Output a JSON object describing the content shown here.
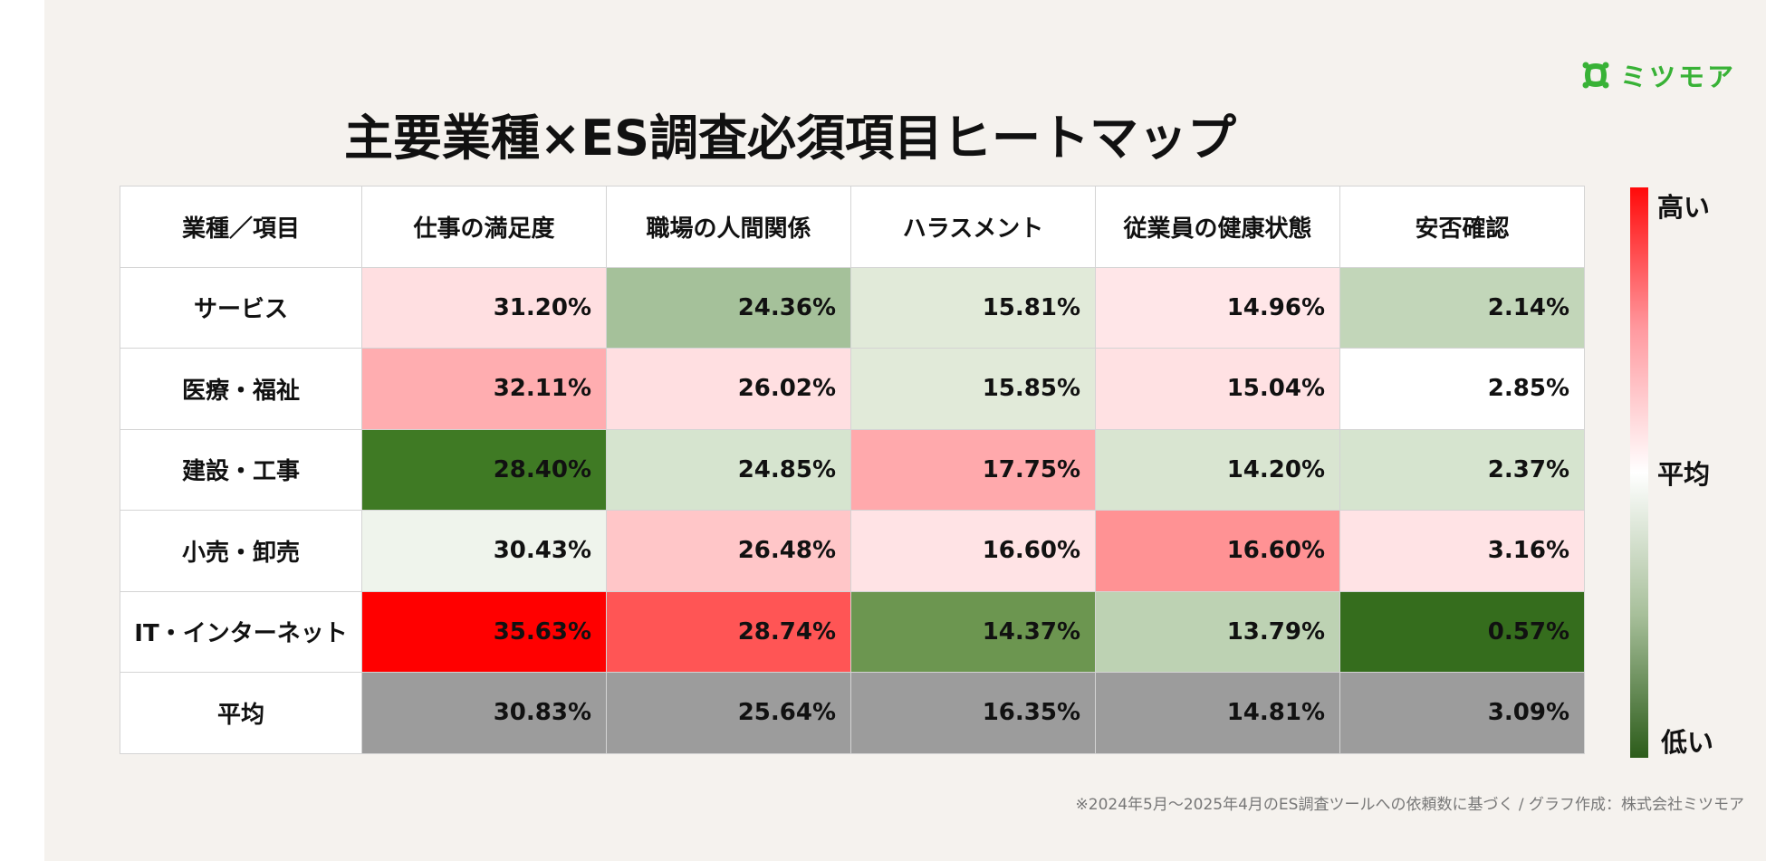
{
  "title": "主要業種×ES調査必須項目ヒートマップ",
  "logo": {
    "text": "ミツモア",
    "color": "#38b236"
  },
  "footnote": "※2024年5月〜2025年4月のES調査ツールへの依頼数に基づく / グラフ作成：株式会社ミツモア",
  "legend": {
    "high": "高い",
    "mid": "平均",
    "low": "低い"
  },
  "chart_data": {
    "type": "heatmap",
    "title": "主要業種×ES調査必須項目ヒートマップ",
    "corner_label": "業種／項目",
    "columns": [
      "仕事の満足度",
      "職場の人間関係",
      "ハラスメント",
      "従業員の健康状態",
      "安否確認"
    ],
    "rows": [
      {
        "label": "サービス",
        "values": [
          "31.20%",
          "24.36%",
          "15.81%",
          "14.96%",
          "2.14%"
        ],
        "colors": [
          "#ffdfe1",
          "#a5c19a",
          "#e1ead9",
          "#ffe6e8",
          "#c2d6b9"
        ]
      },
      {
        "label": "医療・福祉",
        "values": [
          "32.11%",
          "26.02%",
          "15.85%",
          "15.04%",
          "2.85%"
        ],
        "colors": [
          "#ffadb0",
          "#ffdfe1",
          "#e1ead9",
          "#ffe1e3",
          "#ffffff"
        ]
      },
      {
        "label": "建設・工事",
        "values": [
          "28.40%",
          "24.85%",
          "17.75%",
          "14.20%",
          "2.37%"
        ],
        "colors": [
          "#3f7a24",
          "#d6e4cf",
          "#ffa9ac",
          "#d9e5d1",
          "#d6e4cf"
        ]
      },
      {
        "label": "小売・卸売",
        "values": [
          "30.43%",
          "26.48%",
          "16.60%",
          "16.60%",
          "3.16%"
        ],
        "colors": [
          "#eff4ec",
          "#ffc6c8",
          "#ffe3e5",
          "#ff9294",
          "#ffe3e5"
        ]
      },
      {
        "label": "IT・インターネット",
        "values": [
          "35.63%",
          "28.74%",
          "14.37%",
          "13.79%",
          "0.57%"
        ],
        "colors": [
          "#ff0000",
          "#ff5555",
          "#6c9650",
          "#bdd2b3",
          "#356d1d"
        ]
      },
      {
        "label": "平均",
        "values": [
          "30.83%",
          "25.64%",
          "16.35%",
          "14.81%",
          "3.09%"
        ],
        "colors": [
          "#9c9c9c",
          "#9c9c9c",
          "#9c9c9c",
          "#9c9c9c",
          "#9c9c9c"
        ]
      }
    ],
    "color_scale": {
      "high": "#ff0000",
      "mid": "#ffffff",
      "low": "#2c5c1a"
    }
  }
}
